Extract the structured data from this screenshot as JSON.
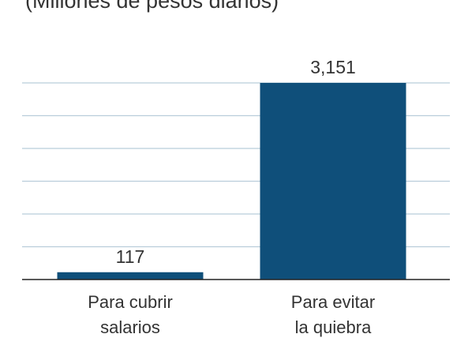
{
  "header": {
    "subtitle": "(Millones de pesos diarios)"
  },
  "colors": {
    "bar": "#0f4f7a",
    "grid": "#b9cddb",
    "axis": "#222222",
    "text": "#333333"
  },
  "chart_data": {
    "type": "bar",
    "title": "",
    "subtitle": "(Millones de pesos diarios)",
    "categories": [
      [
        "Para cubrir",
        "salarios"
      ],
      [
        "Para evitar",
        "la quiebra"
      ]
    ],
    "values": [
      117,
      3151
    ],
    "value_labels": [
      "117",
      "3,151"
    ],
    "xlabel": "",
    "ylabel": "",
    "ylim": [
      0,
      3151
    ],
    "grid": true,
    "legend": "none"
  }
}
